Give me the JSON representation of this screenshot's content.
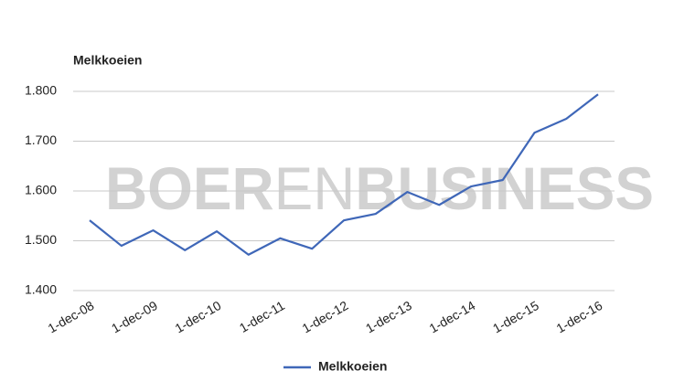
{
  "chart_data": {
    "type": "line",
    "title": "Melkkoeien",
    "watermark": [
      "BOER",
      "EN",
      "BUSINESS"
    ],
    "categories": [
      "1-dec-08",
      null,
      "1-dec-09",
      null,
      "1-dec-10",
      null,
      "1-dec-11",
      null,
      "1-dec-12",
      null,
      "1-dec-13",
      null,
      "1-dec-14",
      null,
      "1-dec-15",
      null,
      "1-dec-16"
    ],
    "series": [
      {
        "name": "Melkkoeien",
        "color": "#3f67b8",
        "values": [
          1541,
          1490,
          1521,
          1481,
          1519,
          1472,
          1505,
          1484,
          1541,
          1554,
          1598,
          1572,
          1609,
          1622,
          1717,
          1745,
          1794
        ]
      }
    ],
    "ylim": [
      1400,
      1800
    ],
    "yticks": [
      {
        "value": 1400,
        "label": "1.400"
      },
      {
        "value": 1500,
        "label": "1.500"
      },
      {
        "value": 1600,
        "label": "1.600"
      },
      {
        "value": 1700,
        "label": "1.700"
      },
      {
        "value": 1800,
        "label": "1.800"
      }
    ],
    "grid": true,
    "legend": "bottom"
  }
}
